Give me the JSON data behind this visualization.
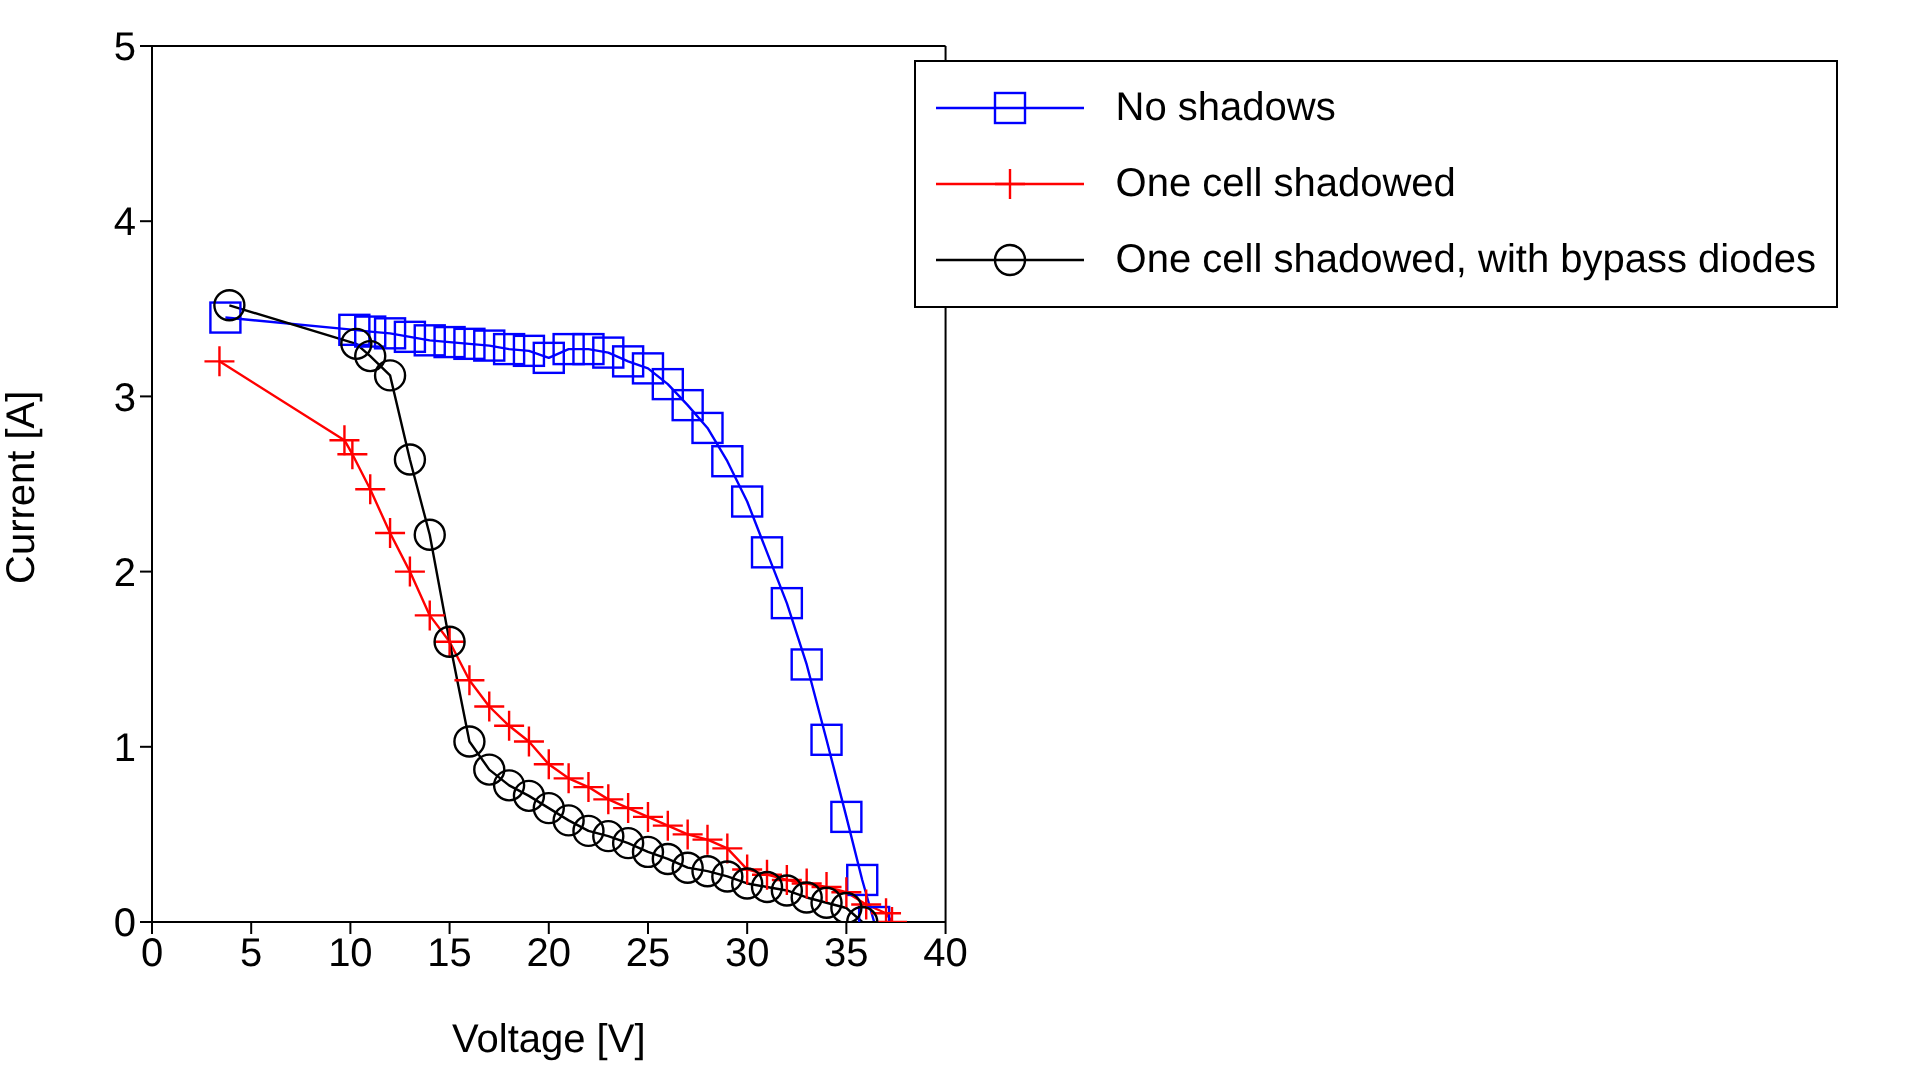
{
  "chart_data": {
    "type": "line",
    "xlabel": "Voltage [V]",
    "ylabel": "Current [A]",
    "xlim": [
      0,
      40
    ],
    "xticks": [
      0,
      5,
      10,
      15,
      20,
      25,
      30,
      35,
      40
    ],
    "ylim": [
      0,
      5
    ],
    "yticks": [
      0,
      1,
      2,
      3,
      4,
      5
    ],
    "grid": false,
    "legend": "top right",
    "series": [
      {
        "name": "No shadows",
        "color": "#0000ff",
        "marker": "square",
        "x": [
          3.7,
          10.2,
          11,
          12,
          13,
          14,
          15,
          16,
          17,
          18,
          19,
          20,
          21,
          22,
          23,
          24,
          25,
          26,
          27,
          28,
          29,
          30,
          31,
          32,
          33,
          34,
          35,
          35.8,
          36.4
        ],
        "values": [
          3.45,
          3.38,
          3.37,
          3.36,
          3.34,
          3.32,
          3.31,
          3.3,
          3.29,
          3.27,
          3.26,
          3.22,
          3.27,
          3.27,
          3.25,
          3.2,
          3.16,
          3.07,
          2.95,
          2.82,
          2.63,
          2.4,
          2.11,
          1.82,
          1.47,
          1.04,
          0.6,
          0.24,
          0
        ]
      },
      {
        "name": "One cell shadowed",
        "color": "#ff0000",
        "marker": "cross",
        "x": [
          3.4,
          9.7,
          10.1,
          11,
          12,
          13,
          14,
          15,
          16,
          17,
          18,
          19,
          20,
          21,
          22,
          23,
          24,
          25,
          26,
          27,
          28,
          29,
          30,
          31,
          32,
          33,
          34,
          35,
          36,
          37,
          37.3
        ],
        "values": [
          3.2,
          2.75,
          2.67,
          2.47,
          2.22,
          2,
          1.75,
          1.6,
          1.38,
          1.23,
          1.12,
          1.03,
          0.9,
          0.82,
          0.77,
          0.7,
          0.65,
          0.6,
          0.55,
          0.5,
          0.47,
          0.42,
          0.3,
          0.27,
          0.24,
          0.22,
          0.2,
          0.17,
          0.1,
          0.05,
          0
        ]
      },
      {
        "name": "One cell shadowed, with bypass diodes",
        "color": "#000000",
        "marker": "circle",
        "x": [
          3.9,
          10.3,
          11,
          12,
          13,
          14,
          15,
          16,
          17,
          18,
          19,
          20,
          21,
          22,
          23,
          24,
          25,
          26,
          27,
          28,
          29,
          30,
          31,
          32,
          33,
          34,
          35,
          35.8
        ],
        "values": [
          3.52,
          3.3,
          3.23,
          3.12,
          2.64,
          2.21,
          1.6,
          1.03,
          0.87,
          0.78,
          0.72,
          0.65,
          0.58,
          0.52,
          0.49,
          0.45,
          0.4,
          0.36,
          0.31,
          0.29,
          0.26,
          0.22,
          0.2,
          0.18,
          0.14,
          0.11,
          0.08,
          0
        ]
      }
    ]
  }
}
